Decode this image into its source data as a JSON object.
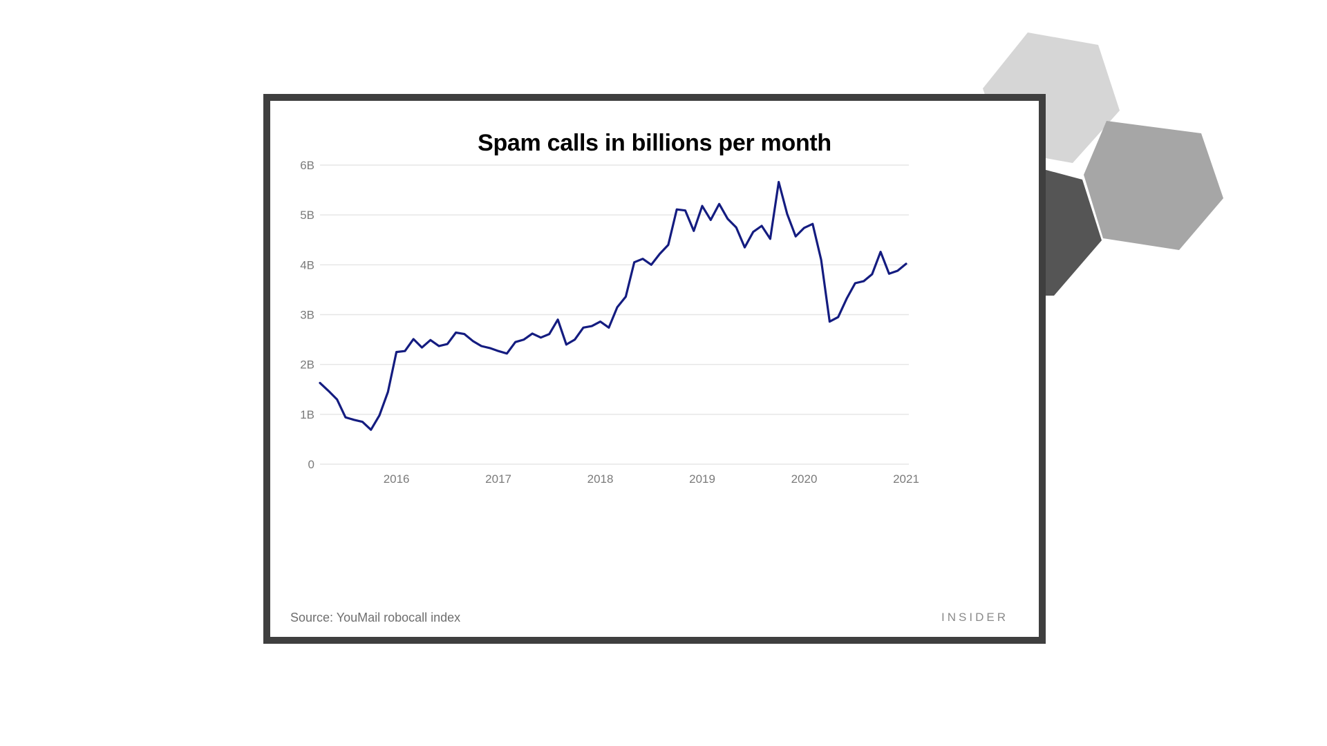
{
  "colors": {
    "line": "#141c80",
    "grid": "#e6e6e6",
    "tick_text": "#7a7a7a",
    "frame": "#3f3f3f",
    "hex_light": "#d6d6d6",
    "hex_mid": "#a6a6a6",
    "hex_dark": "#555555"
  },
  "footer": {
    "source_label": "Source:",
    "source_text": " YouMail robocall index",
    "brand": "INSIDER"
  },
  "chart_data": {
    "type": "line",
    "title": "Spam calls in billions per month",
    "xlabel": "",
    "ylabel": "",
    "xlim": [
      2015.25,
      2021.0
    ],
    "ylim": [
      0,
      6
    ],
    "grid": true,
    "x_ticks": [
      {
        "value": 2016,
        "label": "2016"
      },
      {
        "value": 2017,
        "label": "2017"
      },
      {
        "value": 2018,
        "label": "2018"
      },
      {
        "value": 2019,
        "label": "2019"
      },
      {
        "value": 2020,
        "label": "2020"
      },
      {
        "value": 2021,
        "label": "2021"
      }
    ],
    "y_ticks": [
      {
        "value": 0,
        "label": "0"
      },
      {
        "value": 1,
        "label": "1B"
      },
      {
        "value": 2,
        "label": "2B"
      },
      {
        "value": 3,
        "label": "3B"
      },
      {
        "value": 4,
        "label": "4B"
      },
      {
        "value": 5,
        "label": "5B"
      },
      {
        "value": 6,
        "label": "6B"
      }
    ],
    "series": [
      {
        "x": [
          "2015-04",
          "2015-05",
          "2015-06",
          "2015-07",
          "2015-08",
          "2015-09",
          "2015-10",
          "2015-11",
          "2015-12",
          "2016-01",
          "2016-02",
          "2016-03",
          "2016-04",
          "2016-05",
          "2016-06",
          "2016-07",
          "2016-08",
          "2016-09",
          "2016-10",
          "2016-11",
          "2016-12",
          "2017-01",
          "2017-02",
          "2017-03",
          "2017-04",
          "2017-05",
          "2017-06",
          "2017-07",
          "2017-08",
          "2017-09",
          "2017-10",
          "2017-11",
          "2017-12",
          "2018-01",
          "2018-02",
          "2018-03",
          "2018-04",
          "2018-05",
          "2018-06",
          "2018-07",
          "2018-08",
          "2018-09",
          "2018-10",
          "2018-11",
          "2018-12",
          "2019-01",
          "2019-02",
          "2019-03",
          "2019-04",
          "2019-05",
          "2019-06",
          "2019-07",
          "2019-08",
          "2019-09",
          "2019-10",
          "2019-11",
          "2019-12",
          "2020-01",
          "2020-02",
          "2020-03",
          "2020-04",
          "2020-05",
          "2020-06",
          "2020-07",
          "2020-08",
          "2020-09",
          "2020-10",
          "2020-11",
          "2020-12",
          "2021-01"
        ],
        "values": [
          1.63,
          1.47,
          1.3,
          0.94,
          0.89,
          0.85,
          0.69,
          0.98,
          1.45,
          2.25,
          2.27,
          2.51,
          2.34,
          2.49,
          2.37,
          2.41,
          2.64,
          2.61,
          2.47,
          2.37,
          2.33,
          2.27,
          2.22,
          2.45,
          2.5,
          2.62,
          2.54,
          2.61,
          2.9,
          2.4,
          2.5,
          2.74,
          2.77,
          2.86,
          2.74,
          3.15,
          3.36,
          4.05,
          4.12,
          4.0,
          4.22,
          4.4,
          5.11,
          5.09,
          4.68,
          5.18,
          4.9,
          5.22,
          4.92,
          4.75,
          4.35,
          4.66,
          4.78,
          4.52,
          5.66,
          5.02,
          4.57,
          4.74,
          4.82,
          4.1,
          2.86,
          2.95,
          3.32,
          3.63,
          3.67,
          3.81,
          4.26,
          3.82,
          3.88,
          4.02
        ]
      }
    ]
  }
}
